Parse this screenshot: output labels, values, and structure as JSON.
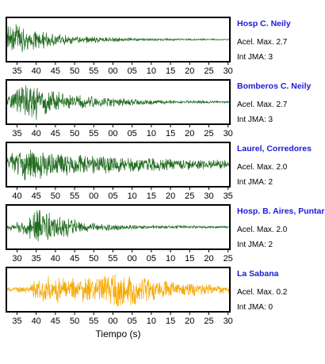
{
  "chart_data": {
    "type": "line",
    "xlabel": "Tiempo (s)",
    "colors": {
      "green": "#1f6b1f",
      "orange": "#f5a800"
    },
    "panels": [
      {
        "station": "Hosp C. Neily",
        "acel_max": "Acel. Max. 2.7",
        "int_jma": "Int JMA: 3",
        "color": "green",
        "tick_labels": [
          "35",
          "40",
          "45",
          "50",
          "55",
          "00",
          "05",
          "10",
          "15",
          "20",
          "25",
          "30"
        ],
        "trace": {
          "start": 0.0,
          "envelope": [
            [
              0.0,
              0.9
            ],
            [
              0.03,
              1.0
            ],
            [
              0.12,
              0.55
            ],
            [
              0.3,
              0.22
            ],
            [
              0.6,
              0.08
            ],
            [
              1.0,
              0.03
            ]
          ],
          "seed": 11
        }
      },
      {
        "station": "Bomberos C. Neily",
        "acel_max": "Acel. Max. 2.7",
        "int_jma": "Int JMA: 3",
        "color": "green",
        "tick_labels": [
          "35",
          "40",
          "45",
          "50",
          "55",
          "00",
          "05",
          "10",
          "15",
          "20",
          "25",
          "30"
        ],
        "trace": {
          "start": 0.0,
          "envelope": [
            [
              0.0,
              0.3
            ],
            [
              0.05,
              0.8
            ],
            [
              0.12,
              1.0
            ],
            [
              0.2,
              0.6
            ],
            [
              0.35,
              0.35
            ],
            [
              0.6,
              0.15
            ],
            [
              1.0,
              0.05
            ]
          ],
          "seed": 23
        }
      },
      {
        "station": "Laurel, Corredores",
        "acel_max": "Acel. Max. 2.0",
        "int_jma": "Int JMA: 2",
        "color": "green",
        "tick_labels": [
          "40",
          "45",
          "50",
          "55",
          "00",
          "05",
          "10",
          "15",
          "20",
          "25",
          "30",
          "35"
        ],
        "trace": {
          "start": 0.0,
          "envelope": [
            [
              0.0,
              0.55
            ],
            [
              0.08,
              0.9
            ],
            [
              0.2,
              0.7
            ],
            [
              0.4,
              0.5
            ],
            [
              0.7,
              0.35
            ],
            [
              1.0,
              0.25
            ]
          ],
          "seed": 37
        }
      },
      {
        "station": "Hosp. B. Aires, Puntare",
        "acel_max": "Acel. Max. 2.0",
        "int_jma": "Int JMA: 2",
        "color": "green",
        "tick_labels": [
          "30",
          "35",
          "40",
          "45",
          "50",
          "55",
          "00",
          "05",
          "10",
          "15",
          "20",
          "25"
        ],
        "trace": {
          "start": 0.0,
          "envelope": [
            [
              0.0,
              0.15
            ],
            [
              0.08,
              0.4
            ],
            [
              0.14,
              1.0
            ],
            [
              0.22,
              0.7
            ],
            [
              0.35,
              0.3
            ],
            [
              0.55,
              0.12
            ],
            [
              1.0,
              0.05
            ]
          ],
          "seed": 51
        }
      },
      {
        "station": "La Sabana",
        "acel_max": "Acel. Max. 0.2",
        "int_jma": "Int JMA: 0",
        "color": "orange",
        "tick_labels": [
          "35",
          "40",
          "45",
          "50",
          "55",
          "00",
          "05",
          "10",
          "15",
          "20",
          "25",
          "30"
        ],
        "trace": {
          "start": 0.0,
          "envelope": [
            [
              0.0,
              0.12
            ],
            [
              0.1,
              0.18
            ],
            [
              0.15,
              0.85
            ],
            [
              0.25,
              0.7
            ],
            [
              0.4,
              0.6
            ],
            [
              0.5,
              0.95
            ],
            [
              0.6,
              0.8
            ],
            [
              0.75,
              0.4
            ],
            [
              0.9,
              0.3
            ],
            [
              1.0,
              0.2
            ]
          ],
          "seed": 67
        }
      }
    ]
  }
}
